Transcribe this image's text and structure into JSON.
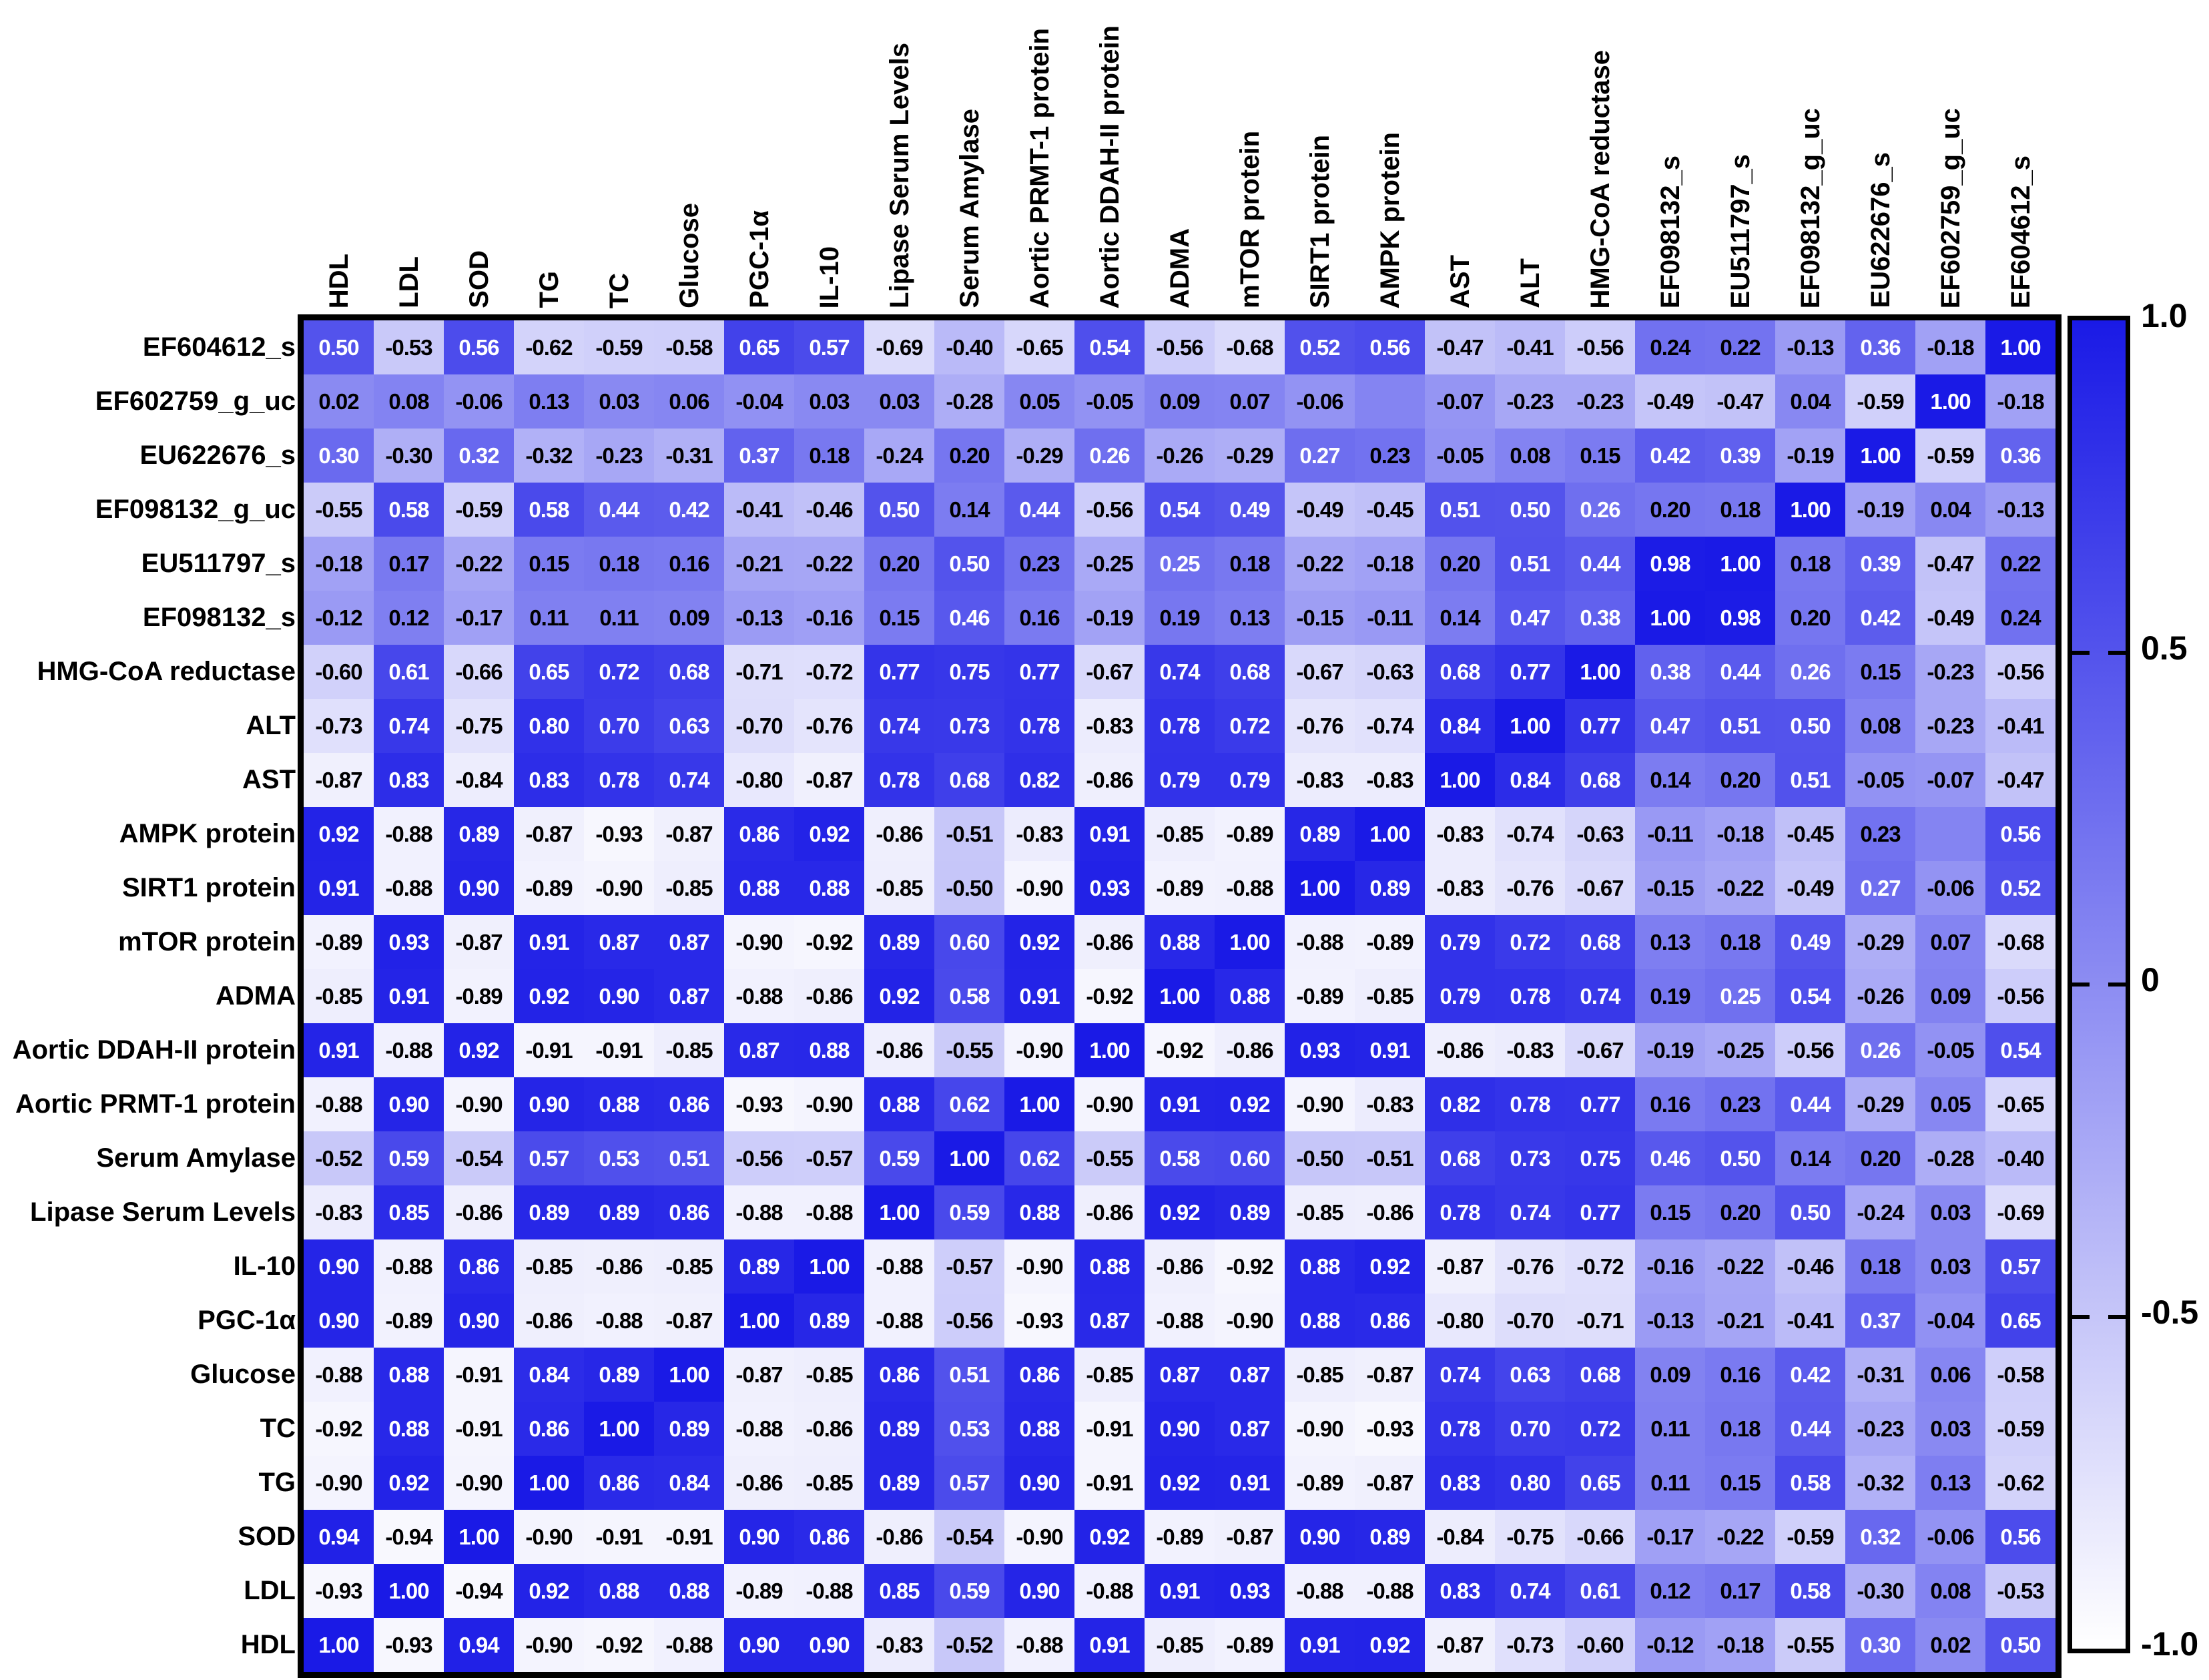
{
  "chart_data": {
    "type": "heatmap",
    "title": "",
    "legend_position": "right",
    "grid": false,
    "colors": {
      "high": "#1a1ae6",
      "low": "#ffffff",
      "border": "#000000",
      "text_dark": "#000000",
      "text_light": "#ffffff"
    },
    "colorbar": {
      "min": -1.0,
      "max": 1.0,
      "ticks": [
        "1.0",
        "0.5",
        "0",
        "-0.5",
        "-1.0"
      ]
    },
    "columns": [
      "HDL",
      "LDL",
      "SOD",
      "TG",
      "TC",
      "Glucose",
      "PGC-1α",
      "IL-10",
      "Lipase Serum Levels",
      "Serum Amylase",
      "Aortic PRMT-1 protein",
      "Aortic DDAH-II protein",
      "ADMA",
      "mTOR protein",
      "SIRT1 protein",
      "AMPK protein",
      "AST",
      "ALT",
      "HMG-CoA reductase",
      "EF098132_s",
      "EU511797_s",
      "EF098132_g_uc",
      "EU622676_s",
      "EF602759_g_uc",
      "EF604612_s"
    ],
    "rows": [
      "EF604612_s",
      "EF602759_g_uc",
      "EU622676_s",
      "EF098132_g_uc",
      "EU511797_s",
      "EF098132_s",
      "HMG-CoA reductase",
      "ALT",
      "AST",
      "AMPK protein",
      "SIRT1 protein",
      "mTOR protein",
      "ADMA",
      "Aortic DDAH-II protein",
      "Aortic PRMT-1 protein",
      "Serum Amylase",
      "Lipase Serum Levels",
      "IL-10",
      "PGC-1α",
      "Glucose",
      "TC",
      "TG",
      "SOD",
      "LDL",
      "HDL"
    ],
    "values": [
      [
        0.5,
        -0.53,
        0.56,
        -0.62,
        -0.59,
        -0.58,
        0.65,
        0.57,
        -0.69,
        -0.4,
        -0.65,
        0.54,
        -0.56,
        -0.68,
        0.52,
        0.56,
        -0.47,
        -0.41,
        -0.56,
        0.24,
        0.22,
        -0.13,
        0.36,
        -0.18,
        1.0
      ],
      [
        0.02,
        0.08,
        -0.06,
        0.13,
        0.03,
        0.06,
        -0.04,
        0.03,
        0.03,
        -0.28,
        0.05,
        -0.05,
        0.09,
        0.07,
        -0.06,
        null,
        -0.07,
        -0.23,
        -0.23,
        -0.49,
        -0.47,
        0.04,
        -0.59,
        1.0,
        -0.18
      ],
      [
        0.3,
        -0.3,
        0.32,
        -0.32,
        -0.23,
        -0.31,
        0.37,
        0.18,
        -0.24,
        0.2,
        -0.29,
        0.26,
        -0.26,
        -0.29,
        0.27,
        0.23,
        -0.05,
        0.08,
        0.15,
        0.42,
        0.39,
        -0.19,
        1.0,
        -0.59,
        0.36
      ],
      [
        -0.55,
        0.58,
        -0.59,
        0.58,
        0.44,
        0.42,
        -0.41,
        -0.46,
        0.5,
        0.14,
        0.44,
        -0.56,
        0.54,
        0.49,
        -0.49,
        -0.45,
        0.51,
        0.5,
        0.26,
        0.2,
        0.18,
        1.0,
        -0.19,
        0.04,
        -0.13
      ],
      [
        -0.18,
        0.17,
        -0.22,
        0.15,
        0.18,
        0.16,
        -0.21,
        -0.22,
        0.2,
        0.5,
        0.23,
        -0.25,
        0.25,
        0.18,
        -0.22,
        -0.18,
        0.2,
        0.51,
        0.44,
        0.98,
        1.0,
        0.18,
        0.39,
        -0.47,
        0.22
      ],
      [
        -0.12,
        0.12,
        -0.17,
        0.11,
        0.11,
        0.09,
        -0.13,
        -0.16,
        0.15,
        0.46,
        0.16,
        -0.19,
        0.19,
        0.13,
        -0.15,
        -0.11,
        0.14,
        0.47,
        0.38,
        1.0,
        0.98,
        0.2,
        0.42,
        -0.49,
        0.24
      ],
      [
        -0.6,
        0.61,
        -0.66,
        0.65,
        0.72,
        0.68,
        -0.71,
        -0.72,
        0.77,
        0.75,
        0.77,
        -0.67,
        0.74,
        0.68,
        -0.67,
        -0.63,
        0.68,
        0.77,
        1.0,
        0.38,
        0.44,
        0.26,
        0.15,
        -0.23,
        -0.56
      ],
      [
        -0.73,
        0.74,
        -0.75,
        0.8,
        0.7,
        0.63,
        -0.7,
        -0.76,
        0.74,
        0.73,
        0.78,
        -0.83,
        0.78,
        0.72,
        -0.76,
        -0.74,
        0.84,
        1.0,
        0.77,
        0.47,
        0.51,
        0.5,
        0.08,
        -0.23,
        -0.41
      ],
      [
        -0.87,
        0.83,
        -0.84,
        0.83,
        0.78,
        0.74,
        -0.8,
        -0.87,
        0.78,
        0.68,
        0.82,
        -0.86,
        0.79,
        0.79,
        -0.83,
        -0.83,
        1.0,
        0.84,
        0.68,
        0.14,
        0.2,
        0.51,
        -0.05,
        -0.07,
        -0.47
      ],
      [
        0.92,
        -0.88,
        0.89,
        -0.87,
        -0.93,
        -0.87,
        0.86,
        0.92,
        -0.86,
        -0.51,
        -0.83,
        0.91,
        -0.85,
        -0.89,
        0.89,
        1.0,
        -0.83,
        -0.74,
        -0.63,
        -0.11,
        -0.18,
        -0.45,
        0.23,
        null,
        0.56
      ],
      [
        0.91,
        -0.88,
        0.9,
        -0.89,
        -0.9,
        -0.85,
        0.88,
        0.88,
        -0.85,
        -0.5,
        -0.9,
        0.93,
        -0.89,
        -0.88,
        1.0,
        0.89,
        -0.83,
        -0.76,
        -0.67,
        -0.15,
        -0.22,
        -0.49,
        0.27,
        -0.06,
        0.52
      ],
      [
        -0.89,
        0.93,
        -0.87,
        0.91,
        0.87,
        0.87,
        -0.9,
        -0.92,
        0.89,
        0.6,
        0.92,
        -0.86,
        0.88,
        1.0,
        -0.88,
        -0.89,
        0.79,
        0.72,
        0.68,
        0.13,
        0.18,
        0.49,
        -0.29,
        0.07,
        -0.68
      ],
      [
        -0.85,
        0.91,
        -0.89,
        0.92,
        0.9,
        0.87,
        -0.88,
        -0.86,
        0.92,
        0.58,
        0.91,
        -0.92,
        1.0,
        0.88,
        -0.89,
        -0.85,
        0.79,
        0.78,
        0.74,
        0.19,
        0.25,
        0.54,
        -0.26,
        0.09,
        -0.56
      ],
      [
        0.91,
        -0.88,
        0.92,
        -0.91,
        -0.91,
        -0.85,
        0.87,
        0.88,
        -0.86,
        -0.55,
        -0.9,
        1.0,
        -0.92,
        -0.86,
        0.93,
        0.91,
        -0.86,
        -0.83,
        -0.67,
        -0.19,
        -0.25,
        -0.56,
        0.26,
        -0.05,
        0.54
      ],
      [
        -0.88,
        0.9,
        -0.9,
        0.9,
        0.88,
        0.86,
        -0.93,
        -0.9,
        0.88,
        0.62,
        1.0,
        -0.9,
        0.91,
        0.92,
        -0.9,
        -0.83,
        0.82,
        0.78,
        0.77,
        0.16,
        0.23,
        0.44,
        -0.29,
        0.05,
        -0.65
      ],
      [
        -0.52,
        0.59,
        -0.54,
        0.57,
        0.53,
        0.51,
        -0.56,
        -0.57,
        0.59,
        1.0,
        0.62,
        -0.55,
        0.58,
        0.6,
        -0.5,
        -0.51,
        0.68,
        0.73,
        0.75,
        0.46,
        0.5,
        0.14,
        0.2,
        -0.28,
        -0.4
      ],
      [
        -0.83,
        0.85,
        -0.86,
        0.89,
        0.89,
        0.86,
        -0.88,
        -0.88,
        1.0,
        0.59,
        0.88,
        -0.86,
        0.92,
        0.89,
        -0.85,
        -0.86,
        0.78,
        0.74,
        0.77,
        0.15,
        0.2,
        0.5,
        -0.24,
        0.03,
        -0.69
      ],
      [
        0.9,
        -0.88,
        0.86,
        -0.85,
        -0.86,
        -0.85,
        0.89,
        1.0,
        -0.88,
        -0.57,
        -0.9,
        0.88,
        -0.86,
        -0.92,
        0.88,
        0.92,
        -0.87,
        -0.76,
        -0.72,
        -0.16,
        -0.22,
        -0.46,
        0.18,
        0.03,
        0.57
      ],
      [
        0.9,
        -0.89,
        0.9,
        -0.86,
        -0.88,
        -0.87,
        1.0,
        0.89,
        -0.88,
        -0.56,
        -0.93,
        0.87,
        -0.88,
        -0.9,
        0.88,
        0.86,
        -0.8,
        -0.7,
        -0.71,
        -0.13,
        -0.21,
        -0.41,
        0.37,
        -0.04,
        0.65
      ],
      [
        -0.88,
        0.88,
        -0.91,
        0.84,
        0.89,
        1.0,
        -0.87,
        -0.85,
        0.86,
        0.51,
        0.86,
        -0.85,
        0.87,
        0.87,
        -0.85,
        -0.87,
        0.74,
        0.63,
        0.68,
        0.09,
        0.16,
        0.42,
        -0.31,
        0.06,
        -0.58
      ],
      [
        -0.92,
        0.88,
        -0.91,
        0.86,
        1.0,
        0.89,
        -0.88,
        -0.86,
        0.89,
        0.53,
        0.88,
        -0.91,
        0.9,
        0.87,
        -0.9,
        -0.93,
        0.78,
        0.7,
        0.72,
        0.11,
        0.18,
        0.44,
        -0.23,
        0.03,
        -0.59
      ],
      [
        -0.9,
        0.92,
        -0.9,
        1.0,
        0.86,
        0.84,
        -0.86,
        -0.85,
        0.89,
        0.57,
        0.9,
        -0.91,
        0.92,
        0.91,
        -0.89,
        -0.87,
        0.83,
        0.8,
        0.65,
        0.11,
        0.15,
        0.58,
        -0.32,
        0.13,
        -0.62
      ],
      [
        0.94,
        -0.94,
        1.0,
        -0.9,
        -0.91,
        -0.91,
        0.9,
        0.86,
        -0.86,
        -0.54,
        -0.9,
        0.92,
        -0.89,
        -0.87,
        0.9,
        0.89,
        -0.84,
        -0.75,
        -0.66,
        -0.17,
        -0.22,
        -0.59,
        0.32,
        -0.06,
        0.56
      ],
      [
        -0.93,
        1.0,
        -0.94,
        0.92,
        0.88,
        0.88,
        -0.89,
        -0.88,
        0.85,
        0.59,
        0.9,
        -0.88,
        0.91,
        0.93,
        -0.88,
        -0.88,
        0.83,
        0.74,
        0.61,
        0.12,
        0.17,
        0.58,
        -0.3,
        0.08,
        -0.53
      ],
      [
        1.0,
        -0.93,
        0.94,
        -0.9,
        -0.92,
        -0.88,
        0.9,
        0.9,
        -0.83,
        -0.52,
        -0.88,
        0.91,
        -0.85,
        -0.89,
        0.91,
        0.92,
        -0.87,
        -0.73,
        -0.6,
        -0.12,
        -0.18,
        -0.55,
        0.3,
        0.02,
        0.5
      ]
    ]
  }
}
